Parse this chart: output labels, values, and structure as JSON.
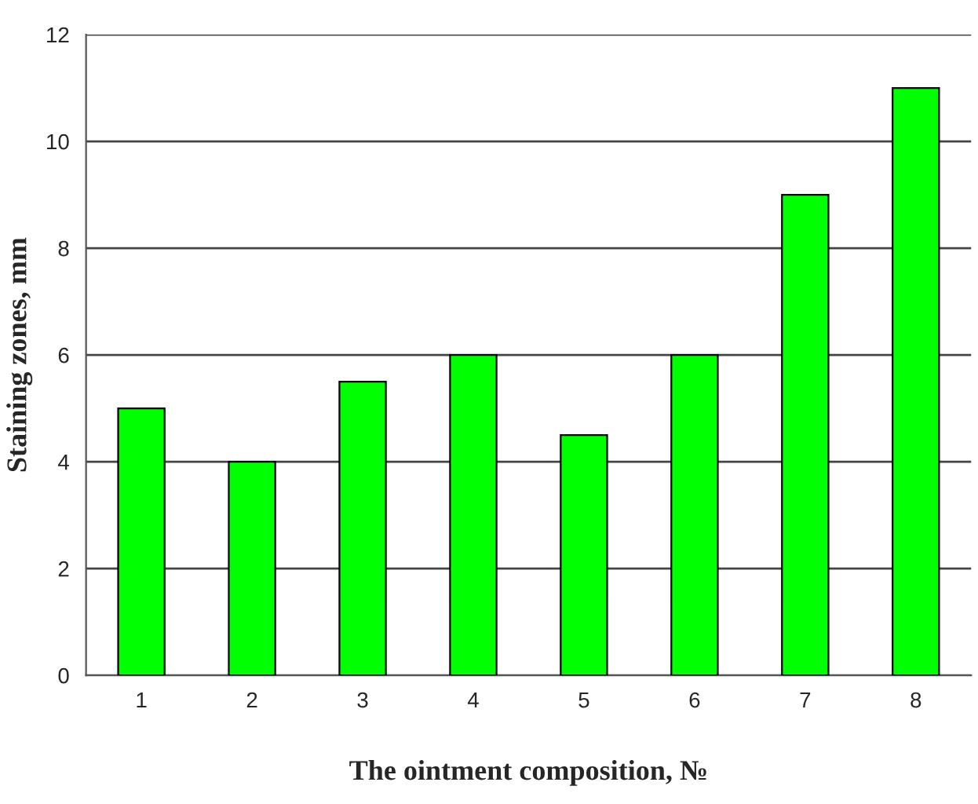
{
  "chart_data": {
    "type": "bar",
    "xlabel": "The ointment composition, №",
    "ylabel": "Staining zones, mm",
    "categories": [
      "1",
      "2",
      "3",
      "4",
      "5",
      "6",
      "7",
      "8"
    ],
    "values": [
      5,
      4,
      5.5,
      6,
      4.5,
      6,
      9,
      11
    ],
    "color": "#00ff00",
    "ylim": [
      0,
      12
    ],
    "yticks": [
      0,
      2,
      4,
      6,
      8,
      10,
      12
    ],
    "grid": "y",
    "legend": false
  }
}
